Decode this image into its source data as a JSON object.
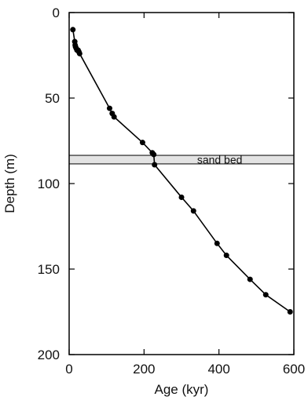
{
  "chart_data": {
    "type": "line",
    "xlabel": "Age (kyr)",
    "ylabel": "Depth (m)",
    "xlim": [
      0,
      600
    ],
    "ylim": [
      0,
      200
    ],
    "y_inverted": true,
    "x_ticks": [
      0,
      200,
      400,
      600
    ],
    "y_ticks": [
      0,
      50,
      100,
      150,
      200
    ],
    "grid": false,
    "legend": "none",
    "series": [
      {
        "x": [
          10,
          15,
          16,
          17,
          19,
          21,
          24,
          26,
          28,
          108,
          115,
          120,
          196,
          222,
          226,
          228,
          300,
          332,
          395,
          420,
          483,
          525,
          590
        ],
        "y": [
          10,
          17,
          19,
          20,
          21,
          22,
          22,
          23,
          24,
          56,
          59,
          61,
          76,
          82,
          83,
          89,
          108,
          116,
          135,
          142,
          156,
          165,
          175
        ],
        "color": "#000000",
        "marker": "circle"
      }
    ],
    "annotations": [
      {
        "type": "band",
        "label": "sand bed",
        "y_range": [
          83.5,
          88.5
        ],
        "fill": "#e3e3e3",
        "stroke": "#000000"
      }
    ]
  }
}
